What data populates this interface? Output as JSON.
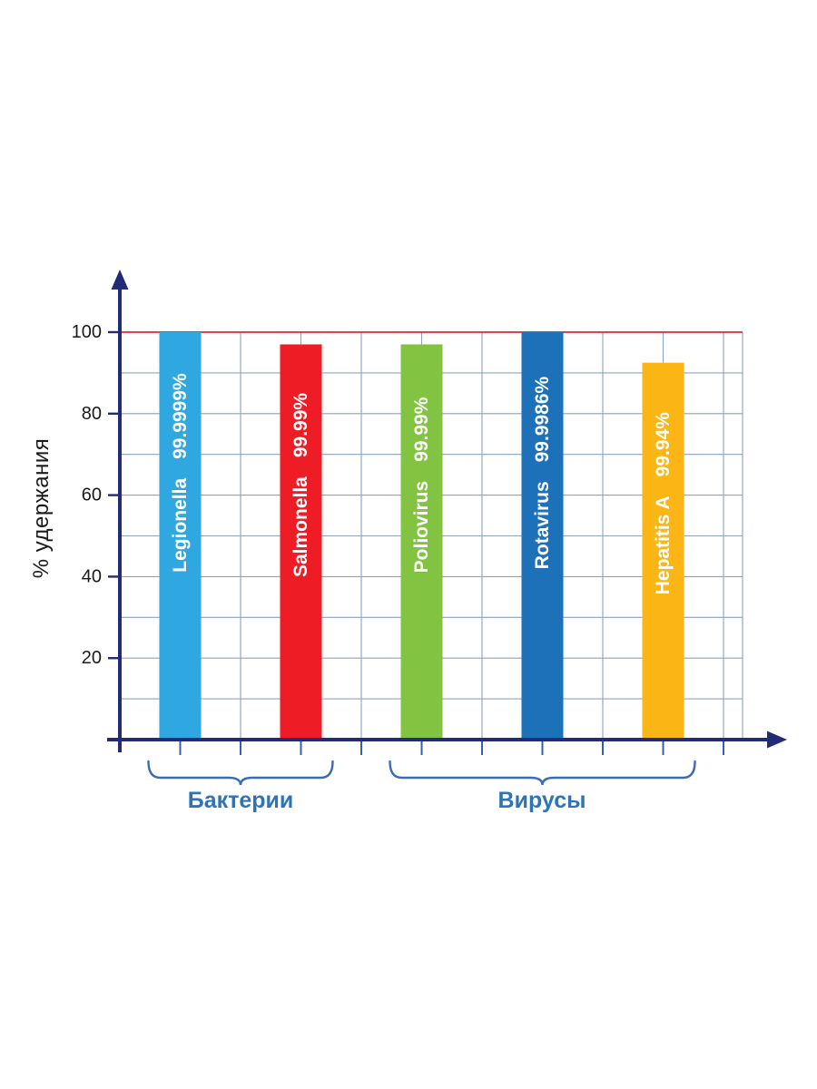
{
  "chart_data": {
    "type": "bar",
    "title": "",
    "ylabel": "% удержания",
    "ylim": [
      0,
      100
    ],
    "y_ticks": [
      20,
      40,
      60,
      80,
      100
    ],
    "grid": true,
    "legend": false,
    "reference_line": {
      "value": 100,
      "color": "#E2262B"
    },
    "categories": [
      "Legionella",
      "Salmonella",
      "Poliovirus",
      "Rotavirus",
      "Hepatitis A"
    ],
    "bars": [
      {
        "name": "Legionella",
        "retention_label": "99.9999%",
        "display_height": 100,
        "color": "#2FA8E1",
        "group": "Бактерии"
      },
      {
        "name": "Salmonella",
        "retention_label": "99.99%",
        "display_height": 97,
        "color": "#EE1C25",
        "group": "Бактерии"
      },
      {
        "name": "Poliovirus",
        "retention_label": "99.99%",
        "display_height": 97,
        "color": "#82C341",
        "group": "Вирусы"
      },
      {
        "name": "Rotavirus",
        "retention_label": "99.9986%",
        "display_height": 100,
        "color": "#1D71B8",
        "group": "Вирусы"
      },
      {
        "name": "Hepatitis A",
        "retention_label": "99.94%",
        "display_height": 92.5,
        "color": "#FBB616",
        "group": "Вирусы"
      }
    ],
    "groups": [
      {
        "label": "Бактерии",
        "first_bar": 0,
        "last_bar": 1
      },
      {
        "label": "Вирусы",
        "first_bar": 2,
        "last_bar": 4
      }
    ],
    "colors": {
      "axis": "#222C76",
      "grid": "#8CA3C4",
      "below_axis_tick": "#3A5DA8",
      "tick_label": "#1A1A1A",
      "bar_label": "#FFFFFF",
      "group_label": "#2E74B5",
      "brace": "#3A6BB5",
      "background": "#FFFFFF"
    }
  }
}
